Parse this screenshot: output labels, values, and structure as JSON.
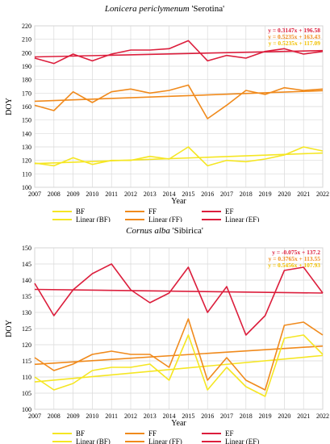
{
  "chart_data": [
    {
      "type": "line",
      "title": {
        "italic": "Lonicera periclymenum",
        "plain": " 'Serotina'"
      },
      "xlabel": "Year",
      "ylabel": "DOY",
      "x": [
        2007,
        2008,
        2009,
        2010,
        2011,
        2012,
        2013,
        2014,
        2015,
        2016,
        2017,
        2018,
        2019,
        2020,
        2021,
        2022
      ],
      "xlim": [
        2007,
        2022
      ],
      "ylim": [
        100,
        220
      ],
      "yticks": [
        100,
        110,
        120,
        130,
        140,
        150,
        160,
        170,
        180,
        190,
        200,
        210,
        220
      ],
      "grid": true,
      "legend_position": "bottom",
      "series": [
        {
          "name": "BF",
          "color": "#f5e623",
          "kind": "data",
          "values": [
            118,
            116,
            122,
            117,
            120,
            120,
            123,
            121,
            130,
            116,
            120,
            119,
            121,
            124,
            130,
            127
          ]
        },
        {
          "name": "FF",
          "color": "#f08a1c",
          "kind": "data",
          "values": [
            161,
            157,
            171,
            163,
            171,
            173,
            170,
            172,
            176,
            151,
            161,
            172,
            169,
            174,
            172,
            173
          ]
        },
        {
          "name": "EF",
          "color": "#dc1e3c",
          "kind": "data",
          "values": [
            196,
            192,
            199,
            194,
            199,
            202,
            202,
            203,
            209,
            194,
            198,
            196,
            201,
            203,
            199,
            201
          ]
        },
        {
          "name": "Linear (BF)",
          "color": "#f5e623",
          "kind": "trend",
          "slope": 0.5235,
          "intercept": 117.09
        },
        {
          "name": "Linear (FF)",
          "color": "#f08a1c",
          "kind": "trend",
          "slope": 0.5235,
          "intercept": 163.43
        },
        {
          "name": "Linear (EF)",
          "color": "#dc1e3c",
          "kind": "trend",
          "slope": 0.3147,
          "intercept": 196.58
        }
      ],
      "annotations": [
        {
          "text": "y = 0.3147x + 196.58",
          "color": "#dc1e3c"
        },
        {
          "text": "y = 0.5235x + 163.43",
          "color": "#f08a1c"
        },
        {
          "text": "y = 0.5235x + 117.09",
          "color": "#f0c000"
        }
      ]
    },
    {
      "type": "line",
      "title": {
        "italic": "Cornus alba",
        "plain": " 'Sibirica'"
      },
      "xlabel": "Year",
      "ylabel": "DOY",
      "x": [
        2007,
        2008,
        2009,
        2010,
        2011,
        2012,
        2013,
        2014,
        2015,
        2016,
        2017,
        2018,
        2019,
        2020,
        2021,
        2022
      ],
      "xlim": [
        2007,
        2022
      ],
      "ylim": [
        100,
        150
      ],
      "yticks": [
        100,
        105,
        110,
        115,
        120,
        125,
        130,
        135,
        140,
        145,
        150
      ],
      "grid": true,
      "legend_position": "bottom",
      "series": [
        {
          "name": "BF",
          "color": "#f5e623",
          "kind": "data",
          "values": [
            110,
            106,
            108,
            112,
            113,
            113,
            114,
            109,
            123,
            106,
            113,
            107,
            104,
            122,
            123,
            117
          ]
        },
        {
          "name": "FF",
          "color": "#f08a1c",
          "kind": "data",
          "values": [
            116,
            112,
            114,
            117,
            118,
            117,
            117,
            113,
            128,
            109,
            116,
            109,
            106,
            126,
            127,
            123
          ]
        },
        {
          "name": "EF",
          "color": "#dc1e3c",
          "kind": "data",
          "values": [
            139,
            129,
            137,
            142,
            145,
            137,
            133,
            136,
            144,
            130,
            138,
            123,
            129,
            143,
            144,
            136
          ]
        },
        {
          "name": "Linear (BF)",
          "color": "#f5e623",
          "kind": "trend",
          "slope": 0.5456,
          "intercept": 107.93
        },
        {
          "name": "Linear (FF)",
          "color": "#f08a1c",
          "kind": "trend",
          "slope": 0.3765,
          "intercept": 113.55
        },
        {
          "name": "Linear (EF)",
          "color": "#dc1e3c",
          "kind": "trend",
          "slope": -0.075,
          "intercept": 137.2
        }
      ],
      "annotations": [
        {
          "text": "y = -0.075x + 137.2",
          "color": "#dc1e3c"
        },
        {
          "text": "y = 0.3765x + 113.55",
          "color": "#f08a1c"
        },
        {
          "text": "y = 0.5456x + 107.93",
          "color": "#f0c000"
        }
      ]
    }
  ]
}
